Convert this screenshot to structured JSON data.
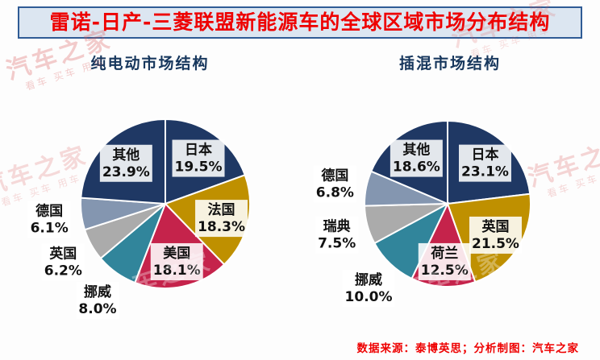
{
  "title": "雷诺-日产-三菱联盟新能源车的全球区域市场分布结构",
  "source_note": "数据来源：泰博英思；分析制图：汽车之家",
  "watermark": {
    "main": "汽车之家",
    "sub": "看车 买车 用车"
  },
  "palette": {
    "navy": "#1F3864",
    "gold": "#BF9000",
    "crimson": "#C5234B",
    "teal": "#31859B",
    "gray": "#ABABAB",
    "grayblue": "#8496B0",
    "title_red": "#EE0000",
    "title_bar_bg": "#DCE6F1",
    "title_bar_border": "#2F5B95",
    "chart_title_navy": "#17375D"
  },
  "chart_data": [
    {
      "type": "pie",
      "title": "纯电动市场结构",
      "direction": "clockwise",
      "start_angle_deg": 0,
      "legend": "none",
      "labels": [
        "日本",
        "法国",
        "美国",
        "挪威",
        "英国",
        "德国",
        "其他"
      ],
      "values": [
        19.5,
        18.3,
        18.1,
        8.0,
        6.2,
        6.1,
        23.9
      ],
      "colors": [
        "#1F3864",
        "#BF9000",
        "#C5234B",
        "#31859B",
        "#ABABAB",
        "#8496B0",
        "#1F3864"
      ]
    },
    {
      "type": "pie",
      "title": "插混市场结构",
      "direction": "clockwise",
      "start_angle_deg": 0,
      "legend": "none",
      "labels": [
        "日本",
        "英国",
        "荷兰",
        "挪威",
        "瑞典",
        "德国",
        "其他"
      ],
      "values": [
        23.1,
        21.5,
        12.5,
        10.0,
        7.5,
        6.8,
        18.6
      ],
      "colors": [
        "#1F3864",
        "#BF9000",
        "#C5234B",
        "#31859B",
        "#ABABAB",
        "#8496B0",
        "#1F3864"
      ]
    }
  ]
}
